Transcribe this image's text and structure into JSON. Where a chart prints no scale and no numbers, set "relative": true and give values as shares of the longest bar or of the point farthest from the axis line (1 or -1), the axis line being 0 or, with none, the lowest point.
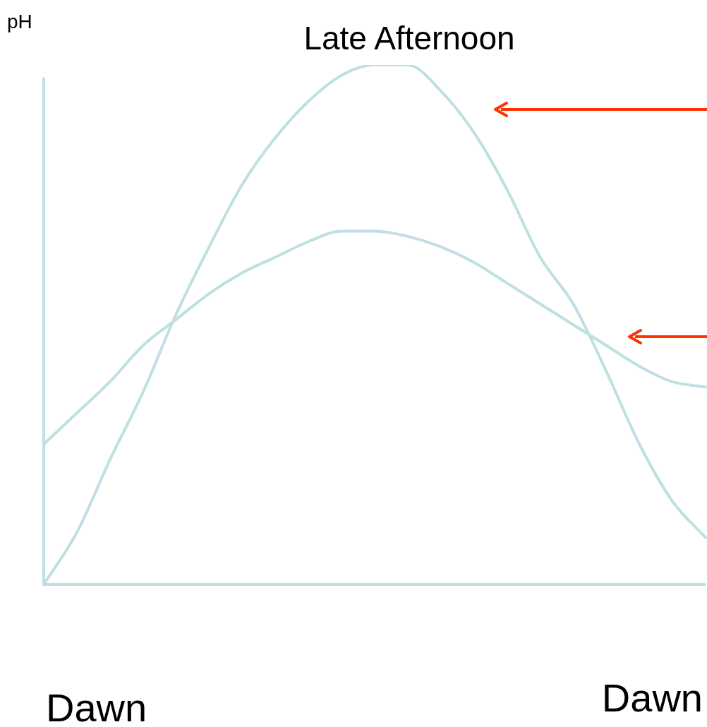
{
  "chart_data": {
    "type": "line",
    "title": "Late Afternoon",
    "ylabel": "pH",
    "relative": true,
    "legend": false,
    "marker": "none",
    "annotations": [
      "Dawn",
      "Dawn"
    ],
    "categories": [
      null,
      null,
      null,
      null,
      null,
      null,
      null,
      null,
      null,
      null,
      null,
      null,
      null,
      null,
      null,
      null,
      null,
      null,
      null,
      null,
      null
    ],
    "series": [
      {
        "color": "#bfdfe2",
        "values": [
          0,
          0.1,
          0.24,
          0.37,
          0.52,
          0.65,
          0.77,
          0.86,
          0.93,
          0.98,
          1,
          1,
          0.95,
          0.87,
          0.76,
          0.63,
          0.54,
          0.41,
          0.27,
          0.16,
          0.09
        ]
      },
      {
        "color": "#bfdfe2",
        "values": [
          0.27,
          0.33,
          0.39,
          0.46,
          0.51,
          0.56,
          0.6,
          0.63,
          0.66,
          0.68,
          0.68,
          0.67,
          0.65,
          0.62,
          0.58,
          0.54,
          0.5,
          0.46,
          0.42,
          0.39,
          0.38
        ]
      }
    ]
  }
}
